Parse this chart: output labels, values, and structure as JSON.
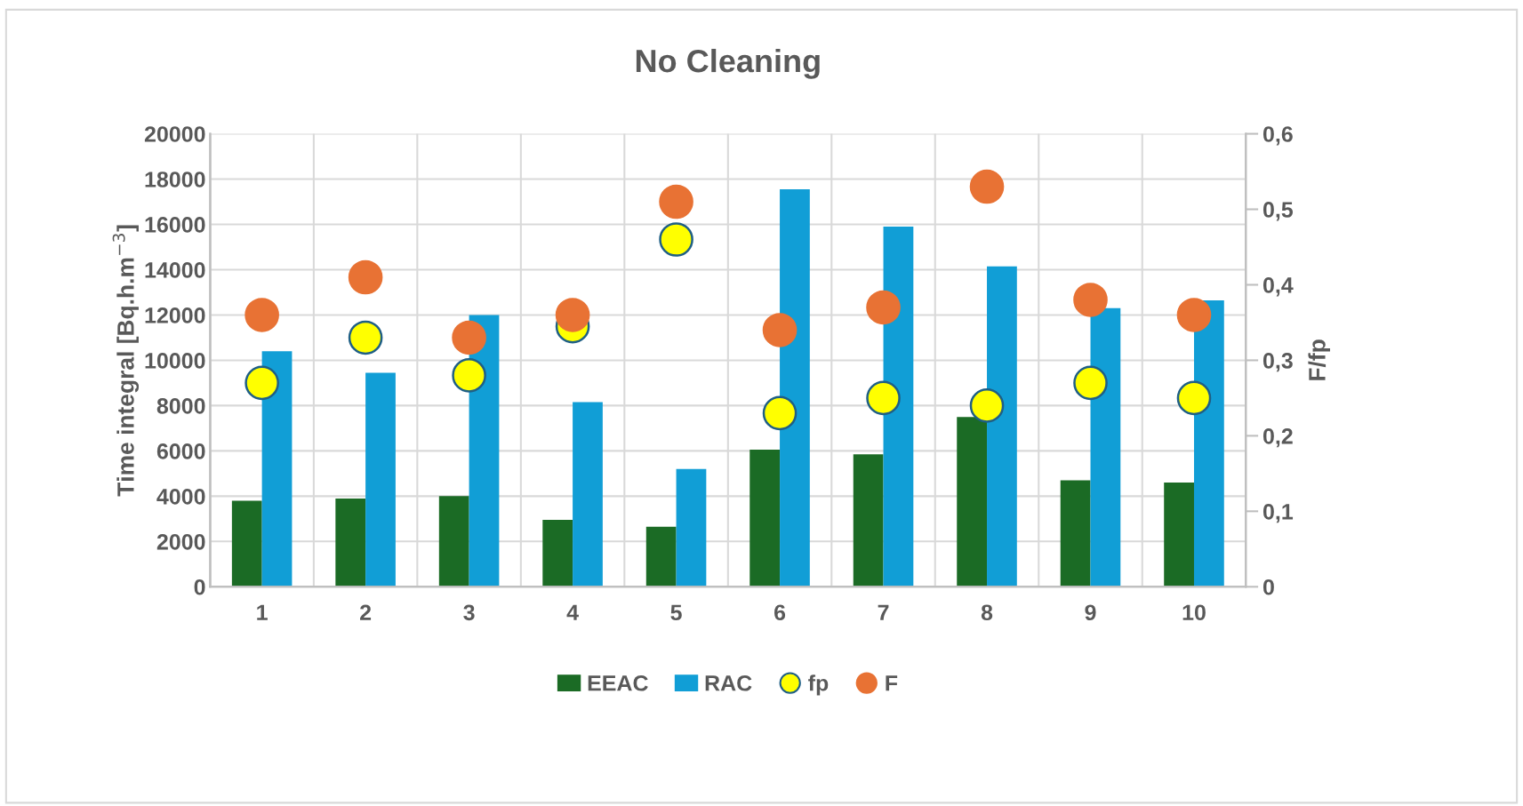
{
  "chart_data": {
    "type": "bar",
    "title": "No Cleaning",
    "ylabel": "Time integral [Bq.h.m$^{−3}$]",
    "y2label": "F/fp",
    "categories": [
      "1",
      "2",
      "3",
      "4",
      "5",
      "6",
      "7",
      "8",
      "9",
      "10"
    ],
    "series": [
      {
        "name": "EEAC",
        "color": "#1b6b25",
        "values": [
          3800,
          3900,
          4000,
          2950,
          2650,
          6050,
          5850,
          7500,
          4700,
          4600
        ]
      },
      {
        "name": "RAC",
        "color": "#119ed6",
        "values": [
          10400,
          9450,
          12000,
          8150,
          5200,
          17550,
          15900,
          14150,
          12300,
          12650
        ]
      },
      {
        "name": "fp",
        "type": "scatter",
        "axis": "y2",
        "color": "#ffff00",
        "values": [
          0.27,
          0.33,
          0.28,
          0.345,
          0.46,
          0.23,
          0.25,
          0.24,
          0.27,
          0.25
        ]
      },
      {
        "name": "F",
        "type": "scatter",
        "axis": "y2",
        "color": "#e87234",
        "values": [
          0.36,
          0.41,
          0.33,
          0.36,
          0.51,
          0.34,
          0.37,
          0.53,
          0.38,
          0.36
        ]
      }
    ],
    "ylim": [
      0,
      20000
    ],
    "yticks": [
      0,
      2000,
      4000,
      6000,
      8000,
      10000,
      12000,
      14000,
      16000,
      18000,
      20000
    ],
    "y2lim": [
      0,
      0.6
    ],
    "y2ticks": [
      {
        "value": 0,
        "label": "0"
      },
      {
        "value": 0.1,
        "label": "0,1"
      },
      {
        "value": 0.2,
        "label": "0,2"
      },
      {
        "value": 0.3,
        "label": "0,3"
      },
      {
        "value": 0.4,
        "label": "0,4"
      },
      {
        "value": 0.5,
        "label": "0,5"
      },
      {
        "value": 0.6,
        "label": "0,6"
      }
    ],
    "grid": true,
    "legend": "bottom",
    "marker": "circle"
  }
}
